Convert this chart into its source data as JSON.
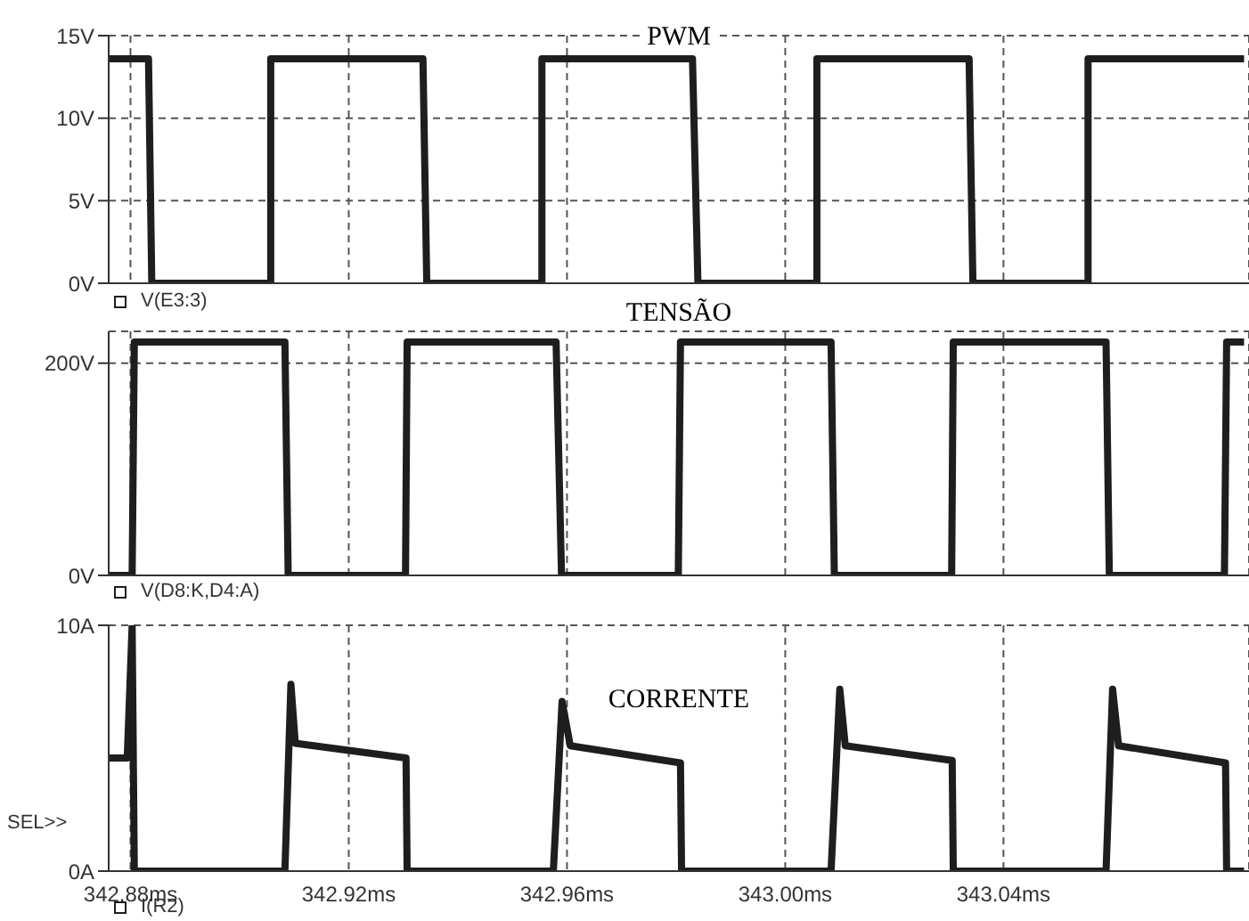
{
  "chart_data": [
    {
      "type": "line",
      "title": "PWM",
      "legend": "bottom",
      "grid": true,
      "tick_labels": "y",
      "xlim": [
        342.876,
        343.085
      ],
      "xticks": [
        {
          "value": 342.88,
          "label": null
        },
        {
          "value": 342.92,
          "label": null
        },
        {
          "value": 342.96,
          "label": null
        },
        {
          "value": 343.0,
          "label": null
        },
        {
          "value": 343.04,
          "label": null
        }
      ],
      "ylim": [
        0,
        15
      ],
      "yticks": [
        {
          "value": 0,
          "label": "0V"
        },
        {
          "value": 5,
          "label": "5V"
        },
        {
          "value": 10,
          "label": "10V"
        },
        {
          "value": 15,
          "label": "15V"
        }
      ],
      "series": [
        {
          "name": "V(E3:3)",
          "color": "#1e1e1e",
          "x": [
            342.8761,
            342.8833,
            342.8839,
            342.9057,
            342.9057,
            342.9336,
            342.9343,
            342.9554,
            342.9554,
            342.983,
            342.984,
            343.0058,
            343.0058,
            343.0337,
            343.0344,
            343.0555,
            343.0555,
            343.0841
          ],
          "values": [
            13.6,
            13.6,
            0,
            0,
            13.6,
            13.6,
            0,
            0,
            13.6,
            13.6,
            0,
            0,
            13.6,
            13.6,
            0,
            0,
            13.6,
            13.6
          ]
        }
      ]
    },
    {
      "type": "line",
      "title": "TENSÃO",
      "legend": "bottom",
      "grid": true,
      "tick_labels": "y",
      "xlim": [
        342.876,
        343.085
      ],
      "xticks": [
        {
          "value": 342.88,
          "label": null
        },
        {
          "value": 342.92,
          "label": null
        },
        {
          "value": 342.96,
          "label": null
        },
        {
          "value": 343.0,
          "label": null
        },
        {
          "value": 343.04,
          "label": null
        }
      ],
      "ylim": [
        0,
        230
      ],
      "yticks": [
        {
          "value": 0,
          "label": "0V"
        },
        {
          "value": 200,
          "label": "200V"
        }
      ],
      "series": [
        {
          "name": "V(D8:K,D4:A)",
          "color": "#1e1e1e",
          "x": [
            342.8761,
            342.8803,
            342.8807,
            342.9083,
            342.9089,
            342.9304,
            342.9307,
            342.958,
            342.959,
            342.9804,
            342.9808,
            343.0084,
            343.009,
            343.0305,
            343.0308,
            343.0588,
            343.0594,
            343.0805,
            343.0809,
            343.0841
          ],
          "values": [
            0,
            0,
            220,
            220,
            0,
            0,
            220,
            220,
            0,
            0,
            220,
            220,
            0,
            0,
            220,
            220,
            0,
            0,
            220,
            220
          ]
        }
      ]
    },
    {
      "type": "line",
      "title": "CORRENTE",
      "legend": "bottom",
      "grid": true,
      "annotations": [
        "SEL>>"
      ],
      "xlim": [
        342.876,
        343.085
      ],
      "xticks": [
        {
          "value": 342.88,
          "label": "342.88ms"
        },
        {
          "value": 342.92,
          "label": "342.92ms"
        },
        {
          "value": 342.96,
          "label": "342.96ms"
        },
        {
          "value": 343.0,
          "label": "343.00ms"
        },
        {
          "value": 343.04,
          "label": "343.04ms"
        }
      ],
      "ylim": [
        0,
        10
      ],
      "yticks": [
        {
          "value": 0,
          "label": "0A"
        },
        {
          "value": 10,
          "label": "10A"
        }
      ],
      "series": [
        {
          "name": "I(R2)",
          "color": "#1e1e1e",
          "x": [
            342.8761,
            342.8794,
            342.8803,
            342.8807,
            342.9083,
            342.9094,
            342.9102,
            342.9305,
            342.9307,
            342.9575,
            342.9591,
            342.9606,
            342.9808,
            342.981,
            343.0084,
            343.01,
            343.011,
            343.0306,
            343.0308,
            343.0588,
            343.06,
            343.0611,
            343.0807,
            343.0809,
            343.0841
          ],
          "values": [
            4.6,
            4.6,
            10,
            0,
            0,
            7.6,
            5.2,
            4.6,
            0,
            0,
            6.9,
            5.1,
            4.4,
            0,
            0,
            7.4,
            5.1,
            4.5,
            0,
            0,
            7.4,
            5.1,
            4.4,
            0,
            0
          ]
        }
      ]
    }
  ]
}
